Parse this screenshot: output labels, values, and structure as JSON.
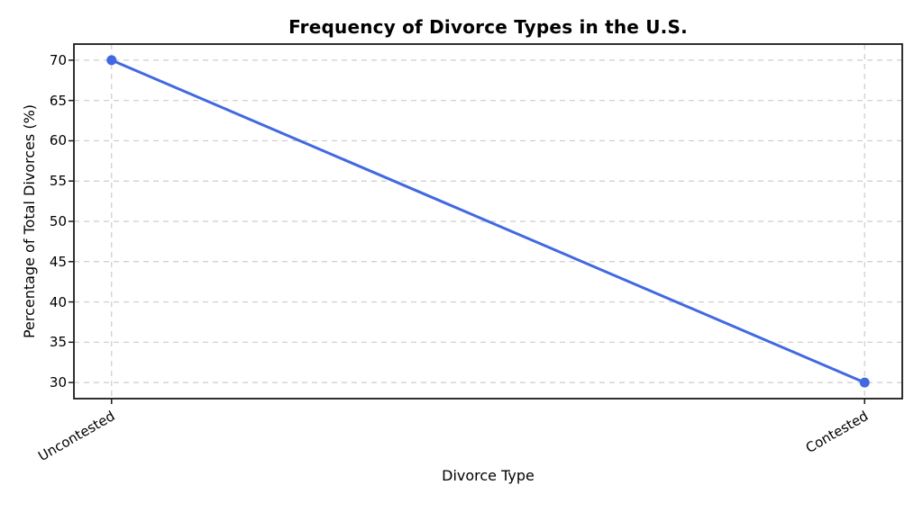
{
  "chart_data": {
    "type": "line",
    "title": "Frequency of Divorce Types in the U.S.",
    "xlabel": "Divorce Type",
    "ylabel": "Percentage of Total Divorces (%)",
    "categories": [
      "Uncontested",
      "Contested"
    ],
    "values": [
      70,
      30
    ],
    "yticks": [
      30,
      35,
      40,
      45,
      50,
      55,
      60,
      65,
      70
    ],
    "ylim": [
      28,
      72
    ],
    "x_margin": 0.05,
    "grid": true,
    "legend_position": "none",
    "line_color": "#4169E1",
    "marker": "circle-icon",
    "grid_color": "#cccccc",
    "axis_color": "#1a1a1a",
    "background_color": "#ffffff"
  }
}
